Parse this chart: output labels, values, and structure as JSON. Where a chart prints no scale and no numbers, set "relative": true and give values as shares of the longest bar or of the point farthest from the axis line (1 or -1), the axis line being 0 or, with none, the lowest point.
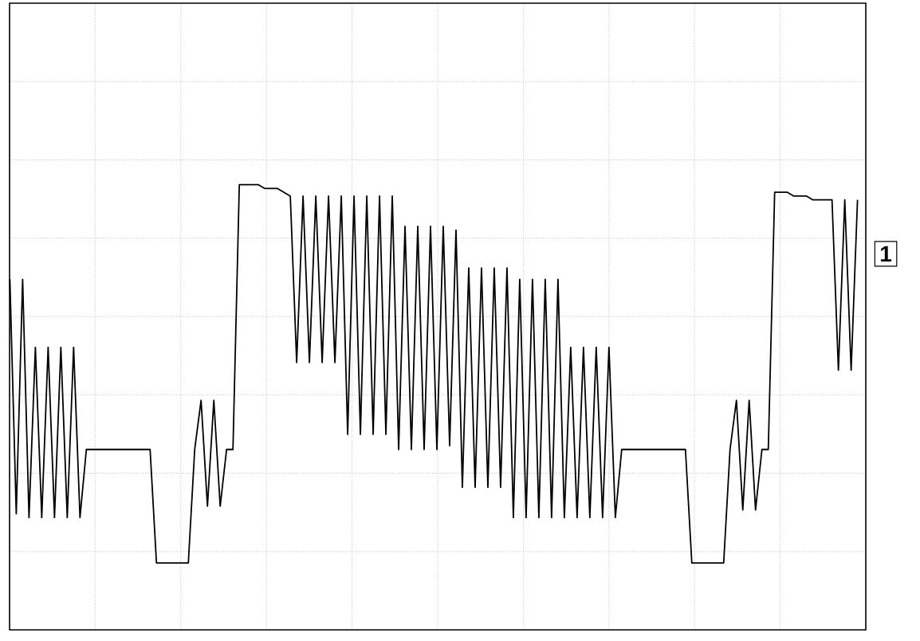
{
  "chart_data": {
    "type": "line",
    "relative": true,
    "grid": true,
    "line_style": "solid",
    "marker": "none",
    "categories": [
      null,
      null,
      null,
      null,
      null,
      null,
      null,
      null,
      null,
      null,
      null,
      null,
      null,
      null,
      null,
      null,
      null,
      null,
      null,
      null,
      null,
      null,
      null,
      null,
      null,
      null,
      null,
      null,
      null,
      null,
      null,
      null,
      null,
      null,
      null,
      null,
      null,
      null,
      null,
      null,
      null,
      null,
      null,
      null,
      null,
      null,
      null,
      null,
      null,
      null,
      null,
      null,
      null,
      null,
      null,
      null,
      null,
      null,
      null,
      null,
      null,
      null,
      null,
      null,
      null,
      null,
      null,
      null,
      null,
      null,
      null,
      null,
      null,
      null,
      null,
      null,
      null,
      null,
      null,
      null,
      null,
      null,
      null,
      null,
      null,
      null,
      null,
      null,
      null,
      null,
      null,
      null,
      null,
      null,
      null,
      null,
      null,
      null,
      null,
      null,
      null,
      null,
      null,
      null,
      null,
      null,
      null,
      null,
      null,
      null,
      null,
      null,
      null,
      null,
      null,
      null,
      null,
      null,
      null,
      null,
      null,
      null,
      null,
      null,
      null,
      null,
      null,
      null,
      null,
      null,
      null,
      null,
      null,
      null
    ],
    "series": [
      {
        "color": "#000000",
        "values": [
          0.75,
          0.13,
          0.75,
          0.12,
          0.57,
          0.12,
          0.57,
          0.12,
          0.57,
          0.12,
          0.57,
          0.12,
          0.3,
          0.3,
          0.3,
          0.3,
          0.3,
          0.3,
          0.3,
          0.3,
          0.3,
          0.3,
          0.3,
          0,
          0,
          0,
          0,
          0,
          0,
          0.3,
          0.43,
          0.15,
          0.43,
          0.15,
          0.3,
          0.3,
          1,
          1,
          1,
          1,
          0.99,
          0.99,
          0.99,
          0.98,
          0.97,
          0.53,
          0.97,
          0.53,
          0.97,
          0.53,
          0.97,
          0.53,
          0.97,
          0.34,
          0.97,
          0.34,
          0.97,
          0.34,
          0.97,
          0.34,
          0.97,
          0.3,
          0.89,
          0.3,
          0.89,
          0.3,
          0.89,
          0.3,
          0.89,
          0.31,
          0.88,
          0.2,
          0.78,
          0.2,
          0.78,
          0.2,
          0.78,
          0.2,
          0.78,
          0.12,
          0.75,
          0.12,
          0.75,
          0.12,
          0.75,
          0.12,
          0.75,
          0.12,
          0.57,
          0.12,
          0.57,
          0.12,
          0.57,
          0.12,
          0.57,
          0.12,
          0.3,
          0.3,
          0.3,
          0.3,
          0.3,
          0.3,
          0.3,
          0.3,
          0.3,
          0.3,
          0.3,
          0,
          0,
          0,
          0,
          0,
          0,
          0.3,
          0.43,
          0.14,
          0.43,
          0.14,
          0.3,
          0.3,
          0.98,
          0.98,
          0.98,
          0.97,
          0.97,
          0.97,
          0.96,
          0.96,
          0.96,
          0.96,
          0.51,
          0.96,
          0.51,
          0.96
        ]
      }
    ],
    "annotations": [
      "1"
    ]
  }
}
